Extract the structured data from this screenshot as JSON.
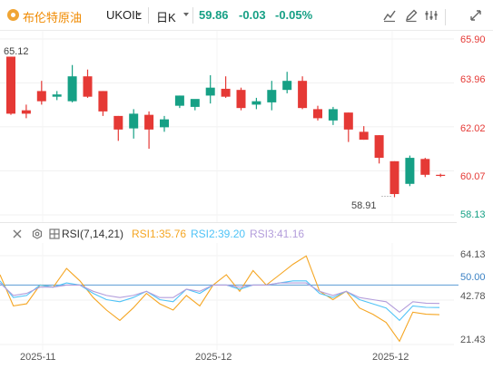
{
  "header": {
    "symbol_name": "布伦特原油",
    "symbol_code": "UKOIL",
    "period": "日K",
    "price": "59.86",
    "change": "-0.03",
    "change_pct": "-0.05%"
  },
  "toolbar": {
    "buttons": [
      "line-chart-icon",
      "pencil-icon",
      "settings-icon",
      "fullscreen-icon"
    ]
  },
  "price_axis": {
    "labels": [
      "65.90",
      "63.96",
      "62.02",
      "60.07",
      "58.13"
    ],
    "range": [
      58.13,
      65.9
    ]
  },
  "markers": {
    "high": "65.12",
    "low": "58.91"
  },
  "rsi_panel": {
    "label": "RSI(7,14,21)",
    "rsi1_label": "RSI1:35.76",
    "rsi2_label": "RSI2:39.20",
    "rsi3_label": "RSI3:41.16",
    "axis_labels": [
      "64.13",
      "50.00",
      "42.78",
      "21.43"
    ],
    "range": [
      21.43,
      64.13
    ]
  },
  "x_axis": {
    "labels": [
      "2025-11",
      "2025-12",
      "2025-12"
    ]
  },
  "colors": {
    "up": "#16a085",
    "down": "#e53935",
    "rsi1": "#f5a623",
    "rsi2": "#4fc3f7",
    "rsi3": "#b39ddb",
    "ref_line": "#5b9bd5",
    "accent": "#f08a00"
  },
  "chart_data": [
    {
      "type": "candlestick",
      "title": "",
      "ylim": [
        58.13,
        65.9
      ],
      "ohlc": [
        [
          65.12,
          65.12,
          62.55,
          62.6
        ],
        [
          62.75,
          63.0,
          62.4,
          62.6
        ],
        [
          63.6,
          64.05,
          63.0,
          63.15
        ],
        [
          63.35,
          63.6,
          63.2,
          63.45
        ],
        [
          63.15,
          64.75,
          63.1,
          64.25
        ],
        [
          64.25,
          64.55,
          63.3,
          63.35
        ],
        [
          63.6,
          63.6,
          62.5,
          62.7
        ],
        [
          62.5,
          62.5,
          61.4,
          61.9
        ],
        [
          61.95,
          62.8,
          61.5,
          62.6
        ],
        [
          62.55,
          62.7,
          61.05,
          61.9
        ],
        [
          62.0,
          62.5,
          61.8,
          62.35
        ],
        [
          62.95,
          63.4,
          62.85,
          63.4
        ],
        [
          62.9,
          63.2,
          62.75,
          63.25
        ],
        [
          63.4,
          64.3,
          63.05,
          63.75
        ],
        [
          63.7,
          64.25,
          63.3,
          63.35
        ],
        [
          63.65,
          63.75,
          62.75,
          62.85
        ],
        [
          63.0,
          63.3,
          62.8,
          63.15
        ],
        [
          63.1,
          64.05,
          62.75,
          63.65
        ],
        [
          63.65,
          64.45,
          63.5,
          64.05
        ],
        [
          64.05,
          64.25,
          62.8,
          62.85
        ],
        [
          62.8,
          62.95,
          62.3,
          62.4
        ],
        [
          62.3,
          62.9,
          62.1,
          62.8
        ],
        [
          62.65,
          62.65,
          61.35,
          61.9
        ],
        [
          61.8,
          62.05,
          61.45,
          61.45
        ],
        [
          61.65,
          61.65,
          60.4,
          60.65
        ],
        [
          60.5,
          60.5,
          58.91,
          59.05
        ],
        [
          59.5,
          60.75,
          59.4,
          60.65
        ],
        [
          60.6,
          60.65,
          59.8,
          59.9
        ],
        [
          59.9,
          59.95,
          59.8,
          59.86
        ]
      ]
    },
    {
      "type": "line",
      "title": "RSI(7,14,21)",
      "ylim": [
        21.43,
        64.13
      ],
      "reference_line": 50.0,
      "series": [
        {
          "name": "RSI1",
          "values": [
            55,
            40,
            41,
            50,
            49,
            58,
            52,
            44,
            38,
            33,
            39,
            46,
            41,
            38,
            45,
            40,
            50,
            55,
            47,
            57,
            50,
            55,
            60,
            64,
            47,
            43,
            47,
            39,
            36,
            32,
            23,
            37,
            36,
            35.76
          ]
        },
        {
          "name": "RSI2",
          "values": [
            52,
            44,
            45,
            50,
            49,
            51,
            50,
            46,
            43,
            42,
            44,
            47,
            43,
            42,
            48,
            46,
            50,
            50,
            48,
            50,
            50,
            51,
            52,
            52,
            46,
            44,
            47,
            43,
            41,
            39,
            33,
            40,
            39.3,
            39.2
          ]
        },
        {
          "name": "RSI3",
          "values": [
            51,
            45,
            46,
            49,
            49,
            50,
            50,
            47,
            45,
            44,
            45,
            47,
            44,
            44,
            48,
            47,
            50,
            50,
            49,
            50,
            50,
            51,
            51,
            51,
            47,
            45,
            47,
            44,
            43,
            42,
            37,
            42,
            41.3,
            41.16
          ]
        }
      ]
    }
  ]
}
